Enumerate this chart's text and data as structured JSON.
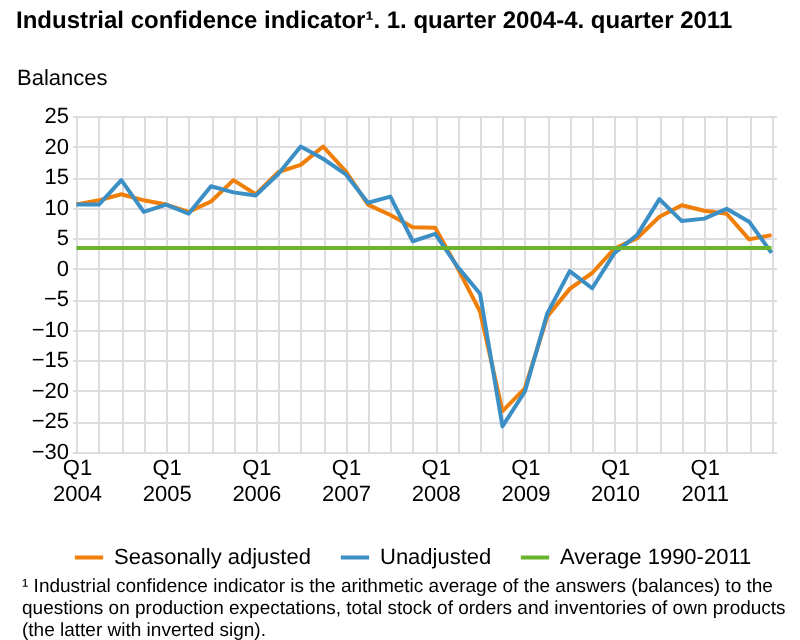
{
  "chart_data": {
    "type": "line",
    "title": "Industrial confidence indicator¹. 1. quarter 2004-4. quarter 2011",
    "ylabel": "Balances",
    "categories": [
      "Q1 2004",
      null,
      null,
      null,
      "Q1 2005",
      null,
      null,
      null,
      "Q1 2006",
      null,
      null,
      null,
      "Q1 2007",
      null,
      null,
      null,
      "Q1 2008",
      null,
      null,
      null,
      "Q1 2009",
      null,
      null,
      null,
      "Q1 2010",
      null,
      null,
      null,
      "Q1 2011",
      null,
      null,
      null
    ],
    "series": [
      {
        "name": "Seasonally adjusted",
        "color": "#f07f09",
        "values": [
          10.5,
          11.2,
          12.2,
          11.2,
          10.5,
          9.3,
          11,
          14.5,
          12.2,
          15.8,
          17,
          20,
          16,
          10.5,
          8.8,
          6.8,
          6.7,
          0.1,
          -7,
          -23.3,
          -19.6,
          -7.8,
          -3.3,
          -0.7,
          3.3,
          5,
          8.5,
          10.4,
          9.5,
          9,
          4.8,
          5.5
        ]
      },
      {
        "name": "Unadjusted",
        "color": "#3b8fc4",
        "values": [
          10.5,
          10.5,
          14.5,
          9.3,
          10.5,
          9,
          13.5,
          12.5,
          12,
          15.5,
          20,
          18,
          15.5,
          10.8,
          11.8,
          4.5,
          5.7,
          0.3,
          -4.1,
          -25.8,
          -20.1,
          -7.3,
          -0.4,
          -3.2,
          2.6,
          5.5,
          11.4,
          7.8,
          8.2,
          9.8,
          7.7,
          2.6
        ]
      },
      {
        "name": "Average 1990-2011",
        "color": "#6ab42d",
        "values": [
          3.4,
          3.4,
          3.4,
          3.4,
          3.4,
          3.4,
          3.4,
          3.4,
          3.4,
          3.4,
          3.4,
          3.4,
          3.4,
          3.4,
          3.4,
          3.4,
          3.4,
          3.4,
          3.4,
          3.4,
          3.4,
          3.4,
          3.4,
          3.4,
          3.4,
          3.4,
          3.4,
          3.4,
          3.4,
          3.4,
          3.4,
          3.4
        ]
      }
    ],
    "ylim": [
      -30,
      25
    ],
    "yticks": [
      -30,
      -25,
      -20,
      -15,
      -10,
      -5,
      0,
      5,
      10,
      15,
      20,
      25
    ],
    "grid": true,
    "legend": "bottom",
    "marker": "none",
    "line_style": "solid",
    "annotations": [
      "¹ Industrial confidence indicator is the arithmetic average of the answers (balances) to the questions on production expectations, total stock of orders and inventories of own products (the latter with inverted sign)."
    ]
  }
}
